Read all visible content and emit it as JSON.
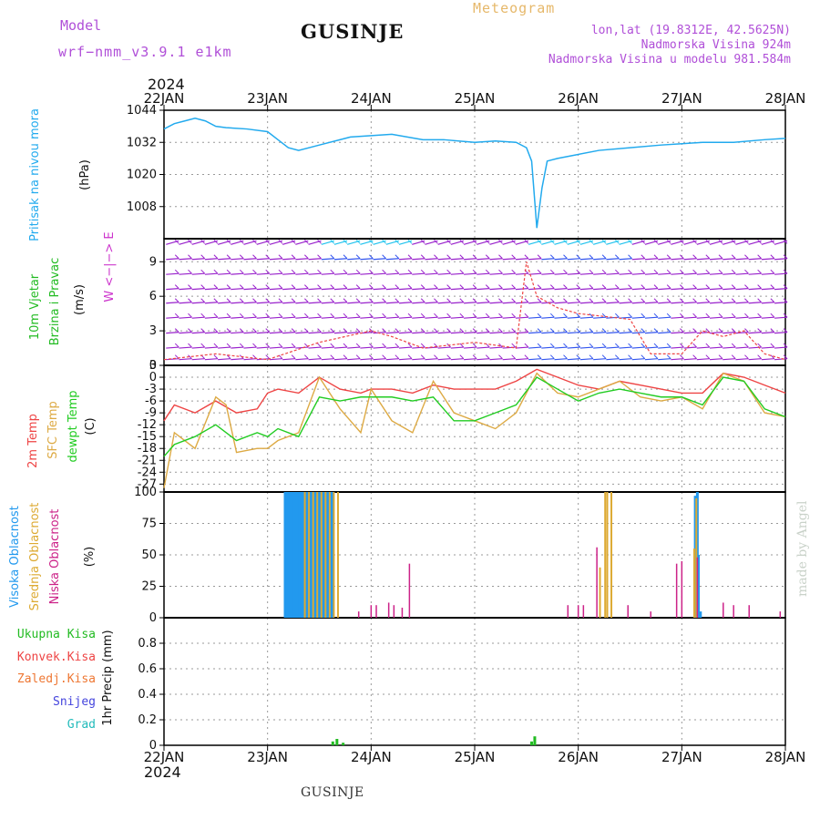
{
  "header": {
    "model_label": "Model",
    "model_name": "wrf−nmm_v3.9.1  e1km",
    "station": "GUSINJE",
    "meteogram": "Meteogram",
    "lonlat": "lon,lat (19.8312E, 42.5625N)",
    "elevation": "Nadmorska Visina 924m",
    "elevation_model": "Nadmorska Visina u modelu 981.584m",
    "year_top": "2024",
    "year_bottom": "2024",
    "footer_station": "GUSINJE",
    "watermark": "made by Angel"
  },
  "colors": {
    "pressure": "#22aaee",
    "wind_speed_label": "#22bb22",
    "wind_dir_label": "#cc33cc",
    "temp2m": "#ee4444",
    "sfc": "#ddaa44",
    "dew": "#22cc22",
    "high_cloud": "#2299ee",
    "mid_cloud": "#ddaa33",
    "low_cloud": "#cc2288",
    "total_precip": "#22bb22",
    "convective": "#ee4444",
    "freezing": "#ee7733",
    "snow": "#4444dd",
    "hail": "#22bbbb"
  },
  "chart_data": [
    {
      "type": "line",
      "panel": "pressure",
      "ylabel_lines": [
        "Pritisak na nivou mora",
        "(hPa)"
      ],
      "yticks": [
        "1044",
        "1032",
        "1020",
        "1008"
      ],
      "ylim": [
        996,
        1044
      ],
      "x_labels_top": [
        "22JAN",
        "23JAN",
        "24JAN",
        "25JAN",
        "26JAN",
        "27JAN",
        "28JAN"
      ],
      "x_days": [
        0,
        1,
        2,
        3,
        4,
        5,
        6
      ],
      "series": [
        {
          "x": [
            0,
            0.1,
            0.2,
            0.3,
            0.4,
            0.5,
            0.6,
            0.8,
            1.0,
            1.1,
            1.2,
            1.3,
            1.5,
            1.8,
            2.0,
            2.2,
            2.5,
            2.7,
            3.0,
            3.2,
            3.4,
            3.5,
            3.55,
            3.6,
            3.65,
            3.7,
            3.8,
            4.0,
            4.2,
            4.5,
            4.8,
            5.0,
            5.2,
            5.5,
            5.8,
            6.0
          ],
          "y": [
            1037,
            1039,
            1040,
            1041,
            1040,
            1038,
            1037.5,
            1037,
            1036,
            1033,
            1030,
            1029,
            1031,
            1034,
            1034.5,
            1035,
            1033,
            1033,
            1032,
            1032.5,
            1032,
            1030,
            1025,
            1000,
            1015,
            1025,
            1026,
            1027.5,
            1029,
            1030,
            1031,
            1031.5,
            1032,
            1032,
            1033,
            1033.5
          ]
        }
      ]
    },
    {
      "type": "line",
      "panel": "wind",
      "ylabel_lines": [
        "10m Vjetar",
        "Brzina i Pravac",
        "(m/s)"
      ],
      "direction_legend": "W <−|−> E",
      "yticks": [
        "9",
        "6",
        "3",
        "0"
      ],
      "ylim": [
        0,
        11
      ],
      "series": [
        {
          "name": "Brzina",
          "x": [
            0,
            0.5,
            1.0,
            1.5,
            2.0,
            2.2,
            2.5,
            3.0,
            3.4,
            3.5,
            3.6,
            3.8,
            4.0,
            4.5,
            4.7,
            5.0,
            5.2,
            5.4,
            5.6,
            5.8,
            6.0
          ],
          "y": [
            0.5,
            1,
            0.5,
            2,
            3,
            2.5,
            1.5,
            2,
            1.5,
            9,
            6,
            5,
            4.5,
            4,
            1,
            1,
            3,
            2.5,
            3,
            1,
            0.5
          ]
        }
      ]
    },
    {
      "type": "line",
      "panel": "temperature",
      "ylabel_lines": [
        "2m Temp",
        "SFC Temp",
        "dewpt Temp",
        "(C)"
      ],
      "yticks": [
        "3",
        "0",
        "-3",
        "-6",
        "-9",
        "-12",
        "-15",
        "-18",
        "-21",
        "-24",
        "-27"
      ],
      "ylim": [
        -29,
        3
      ],
      "series": [
        {
          "name": "2m Temp",
          "x": [
            0,
            0.1,
            0.3,
            0.5,
            0.7,
            0.9,
            1.0,
            1.1,
            1.3,
            1.5,
            1.7,
            1.9,
            2.0,
            2.2,
            2.4,
            2.6,
            2.8,
            3.0,
            3.2,
            3.4,
            3.6,
            3.8,
            4.0,
            4.2,
            4.4,
            4.6,
            4.8,
            5.0,
            5.2,
            5.4,
            5.6,
            5.8,
            6.0
          ],
          "y": [
            -11,
            -7,
            -9,
            -6,
            -9,
            -8,
            -4,
            -3,
            -4,
            0,
            -3,
            -4,
            -3,
            -3,
            -4,
            -2,
            -3,
            -3,
            -3,
            -1,
            2,
            0,
            -2,
            -3,
            -1,
            -2,
            -3,
            -4,
            -4,
            1,
            0,
            -2,
            -4
          ]
        },
        {
          "name": "SFC Temp",
          "x": [
            0,
            0.1,
            0.3,
            0.5,
            0.6,
            0.7,
            0.9,
            1.0,
            1.1,
            1.3,
            1.5,
            1.7,
            1.9,
            2.0,
            2.2,
            2.4,
            2.6,
            2.8,
            3.0,
            3.2,
            3.4,
            3.6,
            3.8,
            4.0,
            4.2,
            4.4,
            4.6,
            4.8,
            5.0,
            5.2,
            5.4,
            5.6,
            5.8,
            6.0
          ],
          "y": [
            -28,
            -14,
            -18,
            -5,
            -7,
            -19,
            -18,
            -18,
            -16,
            -14,
            0,
            -8,
            -14,
            -3,
            -11,
            -14,
            -1,
            -9,
            -11,
            -13,
            -9,
            1,
            -4,
            -5,
            -3,
            -1,
            -5,
            -6,
            -5,
            -8,
            1,
            -1,
            -9,
            -10
          ]
        },
        {
          "name": "dewpt Temp",
          "x": [
            0,
            0.1,
            0.3,
            0.5,
            0.7,
            0.9,
            1.0,
            1.1,
            1.3,
            1.5,
            1.7,
            1.9,
            2.0,
            2.2,
            2.4,
            2.6,
            2.8,
            3.0,
            3.2,
            3.4,
            3.6,
            3.8,
            4.0,
            4.2,
            4.4,
            4.6,
            4.8,
            5.0,
            5.2,
            5.4,
            5.6,
            5.8,
            6.0
          ],
          "y": [
            -20,
            -17,
            -15,
            -12,
            -16,
            -14,
            -15,
            -13,
            -15,
            -5,
            -6,
            -5,
            -5,
            -5,
            -6,
            -5,
            -11,
            -11,
            -9,
            -7,
            0,
            -3,
            -6,
            -4,
            -3,
            -4,
            -5,
            -5,
            -7,
            0,
            -1,
            -8,
            -10
          ]
        }
      ]
    },
    {
      "type": "bar",
      "panel": "clouds",
      "ylabel_lines": [
        "Visoka Oblacnost",
        "Srednja Oblacnost",
        "Niska Oblacnost",
        "(%)"
      ],
      "yticks": [
        "100",
        "75",
        "50",
        "25",
        "0"
      ],
      "ylim": [
        0,
        100
      ],
      "series": [
        {
          "name": "Visoka Oblacnost",
          "x": [
            1.17,
            1.19,
            1.21,
            1.23,
            1.25,
            1.27,
            1.29,
            1.31,
            1.33,
            1.35,
            1.37,
            1.39,
            1.41,
            1.43,
            1.45,
            1.47,
            1.49,
            1.51,
            1.53,
            1.55,
            1.57,
            1.59,
            1.61,
            1.63,
            5.13,
            5.15,
            5.16,
            5.18
          ],
          "y": [
            100,
            100,
            100,
            100,
            100,
            100,
            100,
            100,
            100,
            100,
            100,
            100,
            100,
            100,
            100,
            100,
            100,
            100,
            100,
            100,
            100,
            100,
            100,
            100,
            97,
            100,
            50,
            5
          ]
        },
        {
          "name": "Srednja Oblacnost",
          "x": [
            1.36,
            1.4,
            1.44,
            1.48,
            1.52,
            1.56,
            1.6,
            1.64,
            1.68,
            4.21,
            4.26,
            4.28,
            4.32,
            5.12,
            5.14
          ],
          "y": [
            100,
            100,
            100,
            100,
            100,
            100,
            100,
            100,
            100,
            40,
            100,
            100,
            100,
            55,
            95
          ]
        },
        {
          "name": "Niska Oblacnost",
          "x": [
            1.88,
            2.0,
            2.05,
            2.17,
            2.22,
            2.3,
            2.37,
            3.9,
            4.05,
            4.18,
            4.0,
            4.48,
            4.7,
            4.95,
            5.0,
            5.15,
            5.4,
            5.5,
            5.65,
            5.95
          ],
          "y": [
            5,
            10,
            10,
            12,
            10,
            8,
            43,
            10,
            10,
            56,
            10,
            10,
            5,
            43,
            45,
            48,
            12,
            10,
            10,
            5
          ]
        }
      ]
    },
    {
      "type": "bar",
      "panel": "precip",
      "ylabel_lines": [
        "1hr Precip (mm)"
      ],
      "legend": [
        "Ukupna Kisa",
        "Konvek.Kisa",
        "Zaledj.Kisa",
        "Snijeg",
        "Grad"
      ],
      "yticks": [
        "0.8",
        "0.6",
        "0.4",
        "0.2",
        "0"
      ],
      "ylim": [
        0,
        1.0
      ],
      "x_labels_bottom": [
        "22JAN",
        "23JAN",
        "24JAN",
        "25JAN",
        "26JAN",
        "27JAN",
        "28JAN"
      ],
      "series": [
        {
          "name": "Ukupna Kisa",
          "x": [
            1.63,
            1.67,
            1.73,
            3.55,
            3.58
          ],
          "y": [
            0.03,
            0.05,
            0.02,
            0.03,
            0.07
          ]
        }
      ]
    }
  ]
}
